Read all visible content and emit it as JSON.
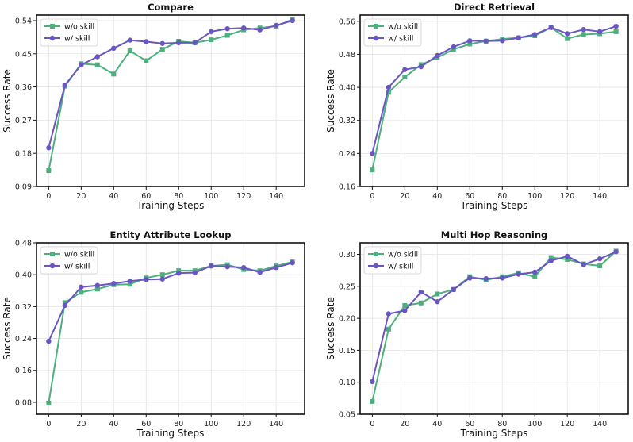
{
  "colors": {
    "wo_skill": "#4caf7d",
    "w_skill": "#6a55c2",
    "grid": "#e3e3e3",
    "axes": "#111111"
  },
  "chart_data": [
    {
      "type": "line",
      "title": "Compare",
      "xlabel": "Training Steps",
      "ylabel": "Success Rate",
      "xlim": [
        -7.5,
        157.5
      ],
      "ylim": [
        0.09,
        0.555
      ],
      "xticks": [
        0,
        20,
        40,
        60,
        80,
        100,
        120,
        140
      ],
      "yticks": [
        0.09,
        0.18,
        0.27,
        0.36,
        0.45,
        0.54
      ],
      "ytick_labels": [
        "0.09",
        "0.18",
        "0.27",
        "0.36",
        "0.45",
        "0.54"
      ],
      "grid": true,
      "legend": "upper-left",
      "x": [
        0,
        10,
        20,
        30,
        40,
        50,
        60,
        70,
        80,
        90,
        100,
        110,
        120,
        130,
        140,
        150
      ],
      "series": [
        {
          "name": "w/o skill",
          "marker": "square",
          "values": [
            0.133,
            0.362,
            0.423,
            0.42,
            0.395,
            0.458,
            0.431,
            0.462,
            0.484,
            0.48,
            0.488,
            0.5,
            0.515,
            0.52,
            0.525,
            0.543
          ]
        },
        {
          "name": "w/ skill",
          "marker": "circle",
          "values": [
            0.195,
            0.365,
            0.42,
            0.442,
            0.465,
            0.487,
            0.483,
            0.478,
            0.48,
            0.48,
            0.51,
            0.518,
            0.52,
            0.515,
            0.527,
            0.54
          ]
        }
      ]
    },
    {
      "type": "line",
      "title": "Direct Retrieval",
      "xlabel": "Training Steps",
      "ylabel": "Success Rate",
      "xlim": [
        -7.5,
        157.5
      ],
      "ylim": [
        0.16,
        0.575
      ],
      "xticks": [
        0,
        20,
        40,
        60,
        80,
        100,
        120,
        140
      ],
      "yticks": [
        0.16,
        0.24,
        0.32,
        0.4,
        0.48,
        0.56
      ],
      "ytick_labels": [
        "0.16",
        "0.24",
        "0.32",
        "0.40",
        "0.48",
        "0.56"
      ],
      "grid": true,
      "legend": "upper-left",
      "x": [
        0,
        10,
        20,
        30,
        40,
        50,
        60,
        70,
        80,
        90,
        100,
        110,
        120,
        130,
        140,
        150
      ],
      "series": [
        {
          "name": "w/o skill",
          "marker": "square",
          "values": [
            0.2,
            0.388,
            0.425,
            0.455,
            0.472,
            0.492,
            0.505,
            0.512,
            0.517,
            0.52,
            0.525,
            0.545,
            0.518,
            0.528,
            0.53,
            0.535
          ]
        },
        {
          "name": "w/ skill",
          "marker": "circle",
          "values": [
            0.24,
            0.4,
            0.443,
            0.45,
            0.477,
            0.498,
            0.513,
            0.512,
            0.513,
            0.52,
            0.528,
            0.545,
            0.53,
            0.54,
            0.535,
            0.548
          ]
        }
      ]
    },
    {
      "type": "line",
      "title": "Entity Attribute Lookup",
      "xlabel": "Training Steps",
      "ylabel": "Success Rate",
      "xlim": [
        -7.5,
        157.5
      ],
      "ylim": [
        0.05,
        0.48
      ],
      "xticks": [
        0,
        20,
        40,
        60,
        80,
        100,
        120,
        140
      ],
      "yticks": [
        0.08,
        0.16,
        0.24,
        0.32,
        0.4,
        0.48
      ],
      "ytick_labels": [
        "0.08",
        "0.16",
        "0.24",
        "0.32",
        "0.40",
        "0.48"
      ],
      "grid": true,
      "legend": "upper-left",
      "x": [
        0,
        10,
        20,
        30,
        40,
        50,
        60,
        70,
        80,
        90,
        100,
        110,
        120,
        130,
        140,
        150
      ],
      "series": [
        {
          "name": "w/o skill",
          "marker": "square",
          "values": [
            0.078,
            0.33,
            0.356,
            0.364,
            0.375,
            0.376,
            0.392,
            0.4,
            0.41,
            0.41,
            0.422,
            0.425,
            0.413,
            0.41,
            0.422,
            0.432
          ]
        },
        {
          "name": "w/ skill",
          "marker": "circle",
          "values": [
            0.233,
            0.323,
            0.369,
            0.373,
            0.378,
            0.384,
            0.388,
            0.389,
            0.404,
            0.405,
            0.422,
            0.42,
            0.418,
            0.406,
            0.418,
            0.43
          ]
        }
      ]
    },
    {
      "type": "line",
      "title": "Multi Hop Reasoning",
      "xlabel": "Training Steps",
      "ylabel": "Success Rate",
      "xlim": [
        -7.5,
        157.5
      ],
      "ylim": [
        0.05,
        0.318
      ],
      "xticks": [
        0,
        20,
        40,
        60,
        80,
        100,
        120,
        140
      ],
      "yticks": [
        0.05,
        0.1,
        0.15,
        0.2,
        0.25,
        0.3
      ],
      "ytick_labels": [
        "0.05",
        "0.10",
        "0.15",
        "0.20",
        "0.25",
        "0.30"
      ],
      "grid": true,
      "legend": "upper-left",
      "x": [
        0,
        10,
        20,
        30,
        40,
        50,
        60,
        70,
        80,
        90,
        100,
        110,
        120,
        130,
        140,
        150
      ],
      "series": [
        {
          "name": "w/o skill",
          "marker": "square",
          "values": [
            0.07,
            0.183,
            0.22,
            0.224,
            0.238,
            0.245,
            0.265,
            0.26,
            0.265,
            0.271,
            0.265,
            0.295,
            0.292,
            0.285,
            0.282,
            0.305
          ]
        },
        {
          "name": "w/ skill",
          "marker": "circle",
          "values": [
            0.101,
            0.207,
            0.212,
            0.241,
            0.226,
            0.245,
            0.263,
            0.262,
            0.263,
            0.269,
            0.272,
            0.29,
            0.297,
            0.284,
            0.293,
            0.304
          ]
        }
      ]
    }
  ]
}
